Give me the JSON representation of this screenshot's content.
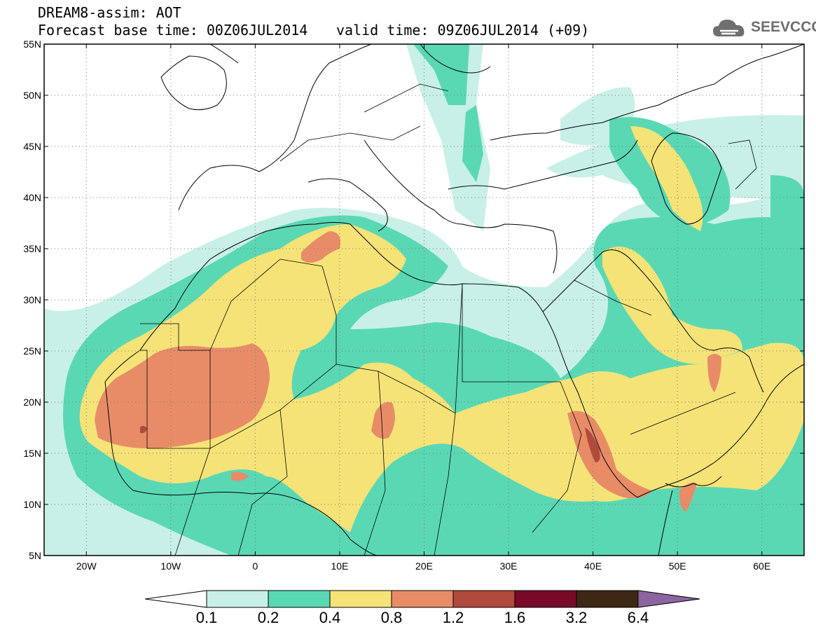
{
  "header": {
    "title": "DREAM8-assim: AOT",
    "base_time": "Forecast base time: 00Z06JUL2014",
    "valid_time": "valid time: 09Z06JUL2014 (+09)",
    "logo_text": "SEEVCCC"
  },
  "map": {
    "lon_range": [
      -25,
      65
    ],
    "lat_range": [
      5,
      55
    ],
    "lon_ticks": [
      {
        "v": -20,
        "label": "20W"
      },
      {
        "v": -10,
        "label": "10W"
      },
      {
        "v": 0,
        "label": "0"
      },
      {
        "v": 10,
        "label": "10E"
      },
      {
        "v": 20,
        "label": "20E"
      },
      {
        "v": 30,
        "label": "30E"
      },
      {
        "v": 40,
        "label": "40E"
      },
      {
        "v": 50,
        "label": "50E"
      },
      {
        "v": 60,
        "label": "60E"
      }
    ],
    "lat_ticks": [
      {
        "v": 5,
        "label": "5N"
      },
      {
        "v": 10,
        "label": "10N"
      },
      {
        "v": 15,
        "label": "15N"
      },
      {
        "v": 20,
        "label": "20N"
      },
      {
        "v": 25,
        "label": "25N"
      },
      {
        "v": 30,
        "label": "30N"
      },
      {
        "v": 35,
        "label": "35N"
      },
      {
        "v": 40,
        "label": "40N"
      },
      {
        "v": 45,
        "label": "45N"
      },
      {
        "v": 50,
        "label": "50N"
      },
      {
        "v": 55,
        "label": "55N"
      }
    ],
    "grid": "dotted"
  },
  "colorbar": {
    "levels": [
      "0.1",
      "0.2",
      "0.4",
      "0.8",
      "1.2",
      "1.6",
      "3.2",
      "6.4"
    ],
    "colors": [
      "#ffffff",
      "#c8f0e6",
      "#5ad8b4",
      "#f5e378",
      "#e88c68",
      "#b04a3c",
      "#780a28",
      "#3c2814",
      "#8c64a0"
    ]
  }
}
